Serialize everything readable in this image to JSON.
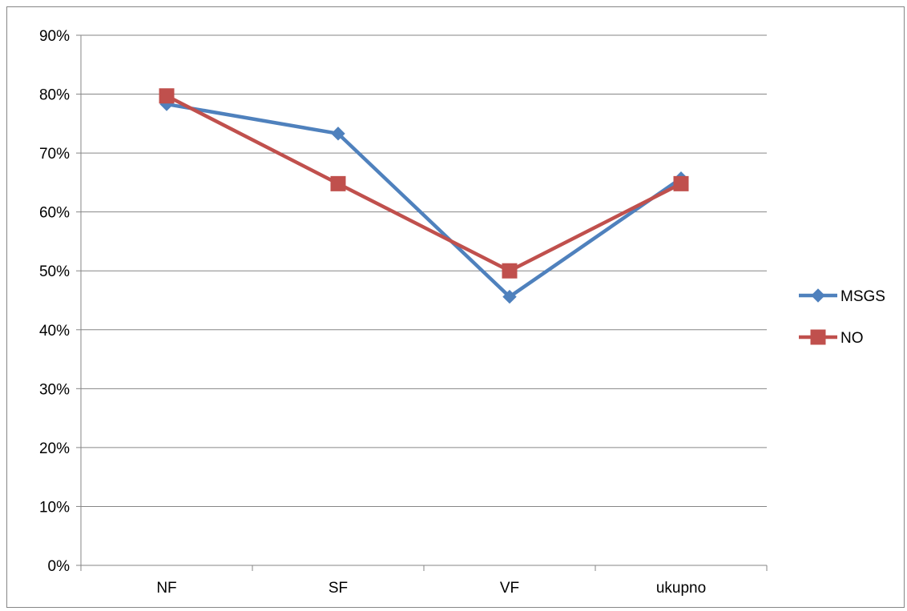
{
  "chart_data": {
    "type": "line",
    "categories": [
      "NF",
      "SF",
      "VF",
      "ukupno"
    ],
    "series": [
      {
        "name": "MSGS",
        "values": [
          78.3,
          73.3,
          45.6,
          65.7
        ],
        "color": "#4f81bd",
        "marker": "diamond"
      },
      {
        "name": "NO",
        "values": [
          79.7,
          64.8,
          50.0,
          64.8
        ],
        "color": "#c0504d",
        "marker": "square"
      }
    ],
    "yticks": [
      "0%",
      "10%",
      "20%",
      "30%",
      "40%",
      "50%",
      "60%",
      "70%",
      "80%",
      "90%"
    ],
    "ylim": [
      0,
      90
    ],
    "grid": true,
    "legend_position": "right"
  }
}
